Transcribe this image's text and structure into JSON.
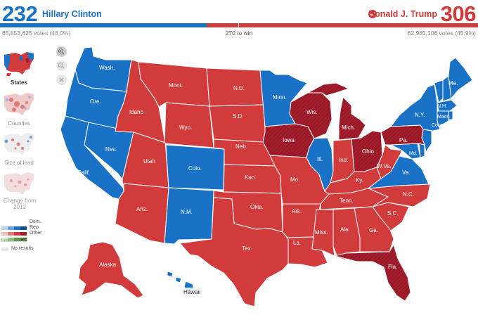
{
  "header": {
    "dem_ev": "232",
    "dem_name": "Hillary Clinton",
    "rep_ev": "306",
    "rep_name": "Donald J. Trump",
    "dem_votes": "65,853,625 votes (48.0%)",
    "rep_votes": "62,985,106 votes (45.9%)",
    "to_win": "270 to win"
  },
  "views": [
    {
      "label": "States"
    },
    {
      "label": "Counties"
    },
    {
      "label": "Size of lead"
    },
    {
      "label": "Change from 2012"
    }
  ],
  "legend": {
    "dem": "Dem.",
    "rep": "Rep.",
    "other": "Other",
    "sub": "Lead Win Flip",
    "no_results": "No results"
  },
  "colors": {
    "dem": "#1a72c6",
    "rep": "#d23b3b",
    "flip_rep": "#a51d2d",
    "no_results": "#e6e6e6"
  },
  "map": {
    "states": {
      "wa": "Wash.",
      "or": "Ore.",
      "ca": "Calif.",
      "nv": "Nev.",
      "id": "Idaho",
      "mt": "Mont.",
      "wy": "Wyo.",
      "ut": "Utah",
      "co": "Colo.",
      "az": "Ariz.",
      "nm": "N.M.",
      "nd": "N.D.",
      "sd": "S.D.",
      "ne": "Neb.",
      "ks": "Kan.",
      "ok": "Okla.",
      "tx": "Tex.",
      "mn": "Minn.",
      "ia": "Iowa",
      "mo": "Mo.",
      "ar": "Ark.",
      "la": "La.",
      "wi": "Wis.",
      "il": "Ill.",
      "mi": "Mich.",
      "in": "Ind.",
      "oh": "Ohio",
      "ky": "Ky.",
      "tn": "Tenn.",
      "ms": "Miss.",
      "al": "Ala.",
      "ga": "Ga.",
      "fl": "Fla.",
      "sc": "S.C.",
      "nc": "N.C.",
      "va": "Va.",
      "wv": "W.Va.",
      "pa": "Pa.",
      "ny": "N.Y.",
      "vt": "Vt.",
      "nh": "N.H.",
      "me": "Me.",
      "ma": "Mass.",
      "ct": "Conn.",
      "md": "Md.",
      "ak": "Alaska",
      "hi": "Hawaii"
    }
  }
}
